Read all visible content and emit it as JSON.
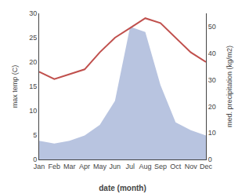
{
  "chart_data": {
    "type": "line",
    "categories": [
      "Jan",
      "Feb",
      "Mar",
      "Apr",
      "May",
      "Jun",
      "Jul",
      "Aug",
      "Sep",
      "Oct",
      "Nov",
      "Dec"
    ],
    "xlabel": "date (month)",
    "ylabel": "max temp (C)",
    "y2label": "med. precipitation (kg/m2)",
    "series": [
      {
        "type": "area",
        "axis": "y2",
        "color": "#b8c4e0",
        "values": [
          7,
          6,
          7,
          9,
          13,
          22,
          50,
          48,
          28,
          14,
          11,
          9
        ]
      },
      {
        "type": "line",
        "color": "#c0504d",
        "values": [
          18,
          16.5,
          17.5,
          18.5,
          22,
          25,
          27,
          29,
          28,
          25,
          22,
          20
        ]
      }
    ],
    "ylim": [
      0,
      30
    ],
    "yticks": [
      0,
      5,
      10,
      15,
      20,
      25,
      30
    ],
    "y2lim": [
      0,
      55
    ],
    "y2ticks": [
      0,
      10,
      20,
      30,
      40,
      50
    ],
    "grid": false
  }
}
